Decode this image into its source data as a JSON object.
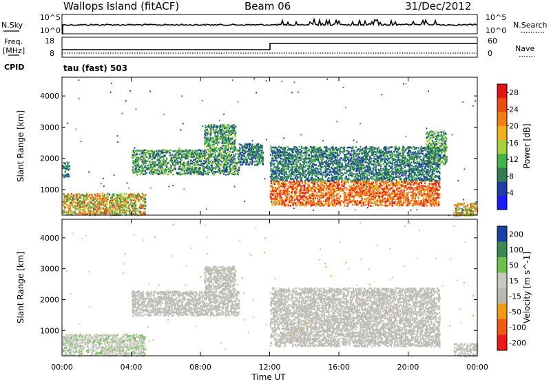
{
  "header": {
    "station": "Wallops Island (fitACF)",
    "beam": "Beam 06",
    "date": "31/Dec/2012"
  },
  "noise_panel": {
    "left_label": "N.Sky",
    "left_ticks": [
      "10^5",
      "10^0"
    ],
    "right_label": "N.Search",
    "right_ticks": [
      "10^5",
      "10^0"
    ]
  },
  "freq_panel": {
    "left_label_1": "Freq.",
    "left_label_2": "[MHz]",
    "left_ticks": [
      "18",
      "8"
    ],
    "right_label": "Nave",
    "right_ticks": [
      "60",
      "0"
    ],
    "cpid_label": "CPID",
    "cpid_text": "tau (fast) 503"
  },
  "colors": {
    "power": [
      "#1a1aff",
      "#1c3fa3",
      "#2f7d52",
      "#44b34a",
      "#a9cf3a",
      "#f2b01e",
      "#f07d17",
      "#ee4a14",
      "#e51515"
    ],
    "velocity": [
      "#ee1a1a",
      "#ee5a16",
      "#f29a18",
      "#b9b9b0",
      "#c8c8c0",
      "#6bc44a",
      "#3a8a55",
      "#1a3fa8"
    ],
    "ground_scatter": "#bdbdb5"
  },
  "chart_data": [
    {
      "type": "heatmap",
      "title": "",
      "xlabel": "",
      "ylabel": "Slant Range [km]",
      "x_ticks": [
        "00:00",
        "04:00",
        "08:00",
        "12:00",
        "16:00",
        "20:00",
        "00:00"
      ],
      "xlim": [
        0,
        24
      ],
      "ylim": [
        180,
        4600
      ],
      "y_ticks": [
        1000,
        2000,
        3000,
        4000
      ],
      "colorbar": {
        "label": "Power [dB]",
        "ticks": [
          "4",
          "8",
          "12",
          "16",
          "20",
          "24",
          "28"
        ],
        "range": [
          0,
          30
        ]
      },
      "scatter_regions": [
        {
          "t": [
            0.0,
            0.4
          ],
          "r": [
            1400,
            1900
          ],
          "power": [
            4,
            12
          ]
        },
        {
          "t": [
            0.0,
            4.8
          ],
          "r": [
            200,
            900
          ],
          "power": [
            8,
            26
          ]
        },
        {
          "t": [
            4.0,
            10.2
          ],
          "r": [
            1500,
            2300
          ],
          "power": [
            4,
            16
          ]
        },
        {
          "t": [
            8.2,
            10.0
          ],
          "r": [
            2300,
            3100
          ],
          "power": [
            4,
            16
          ]
        },
        {
          "t": [
            10.2,
            11.6
          ],
          "r": [
            1800,
            2500
          ],
          "power": [
            4,
            12
          ]
        },
        {
          "t": [
            12.0,
            21.8
          ],
          "r": [
            500,
            1300
          ],
          "power": [
            16,
            30
          ]
        },
        {
          "t": [
            12.0,
            21.8
          ],
          "r": [
            1300,
            2400
          ],
          "power": [
            4,
            12
          ]
        },
        {
          "t": [
            21.0,
            22.2
          ],
          "r": [
            1800,
            2900
          ],
          "power": [
            4,
            16
          ]
        },
        {
          "t": [
            22.6,
            24.0
          ],
          "r": [
            180,
            600
          ],
          "power": [
            8,
            26
          ]
        }
      ]
    },
    {
      "type": "heatmap",
      "title": "",
      "xlabel": "Time UT",
      "ylabel": "Slant Range [km]",
      "x_ticks": [
        "00:00",
        "04:00",
        "08:00",
        "12:00",
        "16:00",
        "20:00",
        "00:00"
      ],
      "xlim": [
        0,
        24
      ],
      "ylim": [
        180,
        4600
      ],
      "y_ticks": [
        1000,
        2000,
        3000,
        4000
      ],
      "colorbar": {
        "label": "Velocity [m s^-1]",
        "ticks": [
          "200",
          "100",
          "50",
          "15",
          "-15",
          "-50",
          "-100",
          "-200"
        ],
        "range": [
          -250,
          250
        ]
      },
      "scatter_regions": [
        {
          "t": [
            0.0,
            4.8
          ],
          "r": [
            200,
            900
          ],
          "velocity": [
            15,
            60
          ]
        },
        {
          "t": [
            4.0,
            10.2
          ],
          "r": [
            1500,
            2300
          ],
          "velocity": [
            -15,
            15
          ]
        },
        {
          "t": [
            8.2,
            10.0
          ],
          "r": [
            2300,
            3100
          ],
          "velocity": [
            -15,
            15
          ]
        },
        {
          "t": [
            12.0,
            21.8
          ],
          "r": [
            500,
            1300
          ],
          "velocity": [
            -15,
            15
          ]
        },
        {
          "t": [
            12.0,
            21.8
          ],
          "r": [
            1300,
            2400
          ],
          "velocity": [
            -15,
            15
          ]
        },
        {
          "t": [
            22.6,
            24.0
          ],
          "r": [
            180,
            600
          ],
          "velocity": [
            -15,
            15
          ]
        }
      ]
    }
  ]
}
